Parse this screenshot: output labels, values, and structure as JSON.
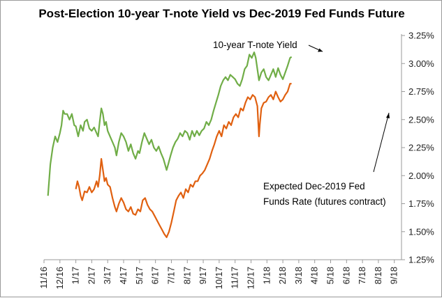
{
  "chart_data": {
    "type": "line",
    "title": "Post-Election 10-year T-note Yield vs Dec-2019 Fed Funds Future",
    "xlabel": "",
    "ylabel": "",
    "x_ticks": [
      "11/16",
      "12/16",
      "1/17",
      "2/17",
      "3/17",
      "4/17",
      "5/17",
      "6/17",
      "7/17",
      "8/17",
      "9/17",
      "10/17",
      "11/17",
      "12/17",
      "1/18",
      "2/18",
      "3/18",
      "4/18",
      "5/18",
      "6/18",
      "7/18",
      "8/18",
      "9/18"
    ],
    "y_ticks": [
      "1.25%",
      "1.50%",
      "1.75%",
      "2.00%",
      "2.25%",
      "2.50%",
      "2.75%",
      "3.00%",
      "3.25%"
    ],
    "ylim": [
      1.25,
      3.25
    ],
    "grid": false,
    "annotations": [
      {
        "text": "10-year T-note Yield",
        "points_to": "10-year T-note Yield"
      },
      {
        "text_lines": [
          "Expected Dec-2019 Fed",
          "Funds Rate (futures contract)"
        ],
        "points_to": "Expected Dec-2019 Fed Funds Rate"
      }
    ],
    "series": [
      {
        "name": "10-year T-note Yield",
        "color": "#70ad47",
        "points": [
          [
            11.25,
            1.82
          ],
          [
            11.4,
            2.1
          ],
          [
            11.55,
            2.25
          ],
          [
            11.7,
            2.35
          ],
          [
            11.85,
            2.3
          ],
          [
            12.0,
            2.38
          ],
          [
            12.1,
            2.45
          ],
          [
            12.2,
            2.58
          ],
          [
            12.3,
            2.55
          ],
          [
            12.45,
            2.55
          ],
          [
            12.6,
            2.5
          ],
          [
            12.75,
            2.55
          ],
          [
            12.9,
            2.45
          ],
          [
            13.0,
            2.44
          ],
          [
            13.15,
            2.35
          ],
          [
            13.3,
            2.45
          ],
          [
            13.45,
            2.4
          ],
          [
            13.55,
            2.48
          ],
          [
            13.7,
            2.5
          ],
          [
            13.85,
            2.42
          ],
          [
            14.0,
            2.4
          ],
          [
            14.15,
            2.43
          ],
          [
            14.3,
            2.38
          ],
          [
            14.4,
            2.35
          ],
          [
            14.5,
            2.48
          ],
          [
            14.6,
            2.6
          ],
          [
            14.7,
            2.55
          ],
          [
            14.8,
            2.45
          ],
          [
            14.9,
            2.48
          ],
          [
            15.0,
            2.4
          ],
          [
            15.15,
            2.35
          ],
          [
            15.3,
            2.3
          ],
          [
            15.45,
            2.25
          ],
          [
            15.55,
            2.18
          ],
          [
            15.7,
            2.3
          ],
          [
            15.85,
            2.38
          ],
          [
            16.0,
            2.35
          ],
          [
            16.15,
            2.3
          ],
          [
            16.3,
            2.22
          ],
          [
            16.45,
            2.28
          ],
          [
            16.6,
            2.2
          ],
          [
            16.75,
            2.15
          ],
          [
            16.9,
            2.22
          ],
          [
            17.0,
            2.2
          ],
          [
            17.15,
            2.3
          ],
          [
            17.3,
            2.38
          ],
          [
            17.45,
            2.33
          ],
          [
            17.6,
            2.28
          ],
          [
            17.75,
            2.32
          ],
          [
            17.9,
            2.25
          ],
          [
            18.05,
            2.22
          ],
          [
            18.2,
            2.26
          ],
          [
            18.35,
            2.2
          ],
          [
            18.5,
            2.15
          ],
          [
            18.6,
            2.1
          ],
          [
            18.7,
            2.05
          ],
          [
            18.8,
            2.1
          ],
          [
            18.95,
            2.18
          ],
          [
            19.1,
            2.25
          ],
          [
            19.25,
            2.3
          ],
          [
            19.4,
            2.33
          ],
          [
            19.55,
            2.38
          ],
          [
            19.7,
            2.35
          ],
          [
            19.85,
            2.4
          ],
          [
            20.0,
            2.38
          ],
          [
            20.15,
            2.32
          ],
          [
            20.3,
            2.4
          ],
          [
            20.45,
            2.35
          ],
          [
            20.6,
            2.4
          ],
          [
            20.75,
            2.36
          ],
          [
            20.9,
            2.4
          ],
          [
            21.05,
            2.42
          ],
          [
            21.2,
            2.48
          ],
          [
            21.35,
            2.45
          ],
          [
            21.5,
            2.5
          ],
          [
            21.65,
            2.58
          ],
          [
            21.8,
            2.65
          ],
          [
            21.95,
            2.72
          ],
          [
            22.1,
            2.8
          ],
          [
            22.25,
            2.85
          ],
          [
            22.4,
            2.88
          ],
          [
            22.55,
            2.85
          ],
          [
            22.7,
            2.9
          ],
          [
            22.85,
            2.88
          ],
          [
            23.0,
            2.86
          ],
          [
            23.15,
            2.82
          ],
          [
            23.3,
            2.8
          ],
          [
            23.45,
            2.86
          ],
          [
            23.6,
            2.95
          ],
          [
            23.75,
            2.98
          ],
          [
            23.9,
            3.08
          ],
          [
            24.05,
            3.05
          ],
          [
            24.2,
            3.1
          ],
          [
            24.3,
            3.05
          ],
          [
            24.4,
            2.95
          ],
          [
            24.5,
            2.85
          ],
          [
            24.65,
            2.92
          ],
          [
            24.8,
            2.95
          ],
          [
            24.95,
            2.88
          ],
          [
            25.1,
            2.85
          ],
          [
            25.25,
            2.9
          ],
          [
            25.4,
            2.95
          ],
          [
            25.55,
            2.88
          ],
          [
            25.7,
            2.96
          ],
          [
            25.85,
            2.9
          ],
          [
            26.0,
            2.86
          ],
          [
            26.15,
            2.92
          ],
          [
            26.3,
            2.98
          ],
          [
            26.45,
            3.05
          ],
          [
            26.55,
            3.06
          ]
        ]
      },
      {
        "name": "Expected Dec-2019 Fed Funds Rate",
        "color": "#e06010",
        "points": [
          [
            13.0,
            1.88
          ],
          [
            13.1,
            1.95
          ],
          [
            13.2,
            1.9
          ],
          [
            13.3,
            1.82
          ],
          [
            13.4,
            1.78
          ],
          [
            13.55,
            1.86
          ],
          [
            13.7,
            1.85
          ],
          [
            13.85,
            1.9
          ],
          [
            14.0,
            1.85
          ],
          [
            14.15,
            1.88
          ],
          [
            14.3,
            1.95
          ],
          [
            14.4,
            1.9
          ],
          [
            14.5,
            2.0
          ],
          [
            14.6,
            2.15
          ],
          [
            14.7,
            2.05
          ],
          [
            14.8,
            1.95
          ],
          [
            14.9,
            1.98
          ],
          [
            15.0,
            1.92
          ],
          [
            15.15,
            1.9
          ],
          [
            15.3,
            1.8
          ],
          [
            15.45,
            1.72
          ],
          [
            15.55,
            1.68
          ],
          [
            15.7,
            1.75
          ],
          [
            15.85,
            1.8
          ],
          [
            16.0,
            1.76
          ],
          [
            16.15,
            1.7
          ],
          [
            16.3,
            1.68
          ],
          [
            16.45,
            1.72
          ],
          [
            16.6,
            1.66
          ],
          [
            16.75,
            1.65
          ],
          [
            16.9,
            1.7
          ],
          [
            17.05,
            1.68
          ],
          [
            17.2,
            1.78
          ],
          [
            17.35,
            1.8
          ],
          [
            17.5,
            1.74
          ],
          [
            17.65,
            1.7
          ],
          [
            17.8,
            1.68
          ],
          [
            17.95,
            1.64
          ],
          [
            18.1,
            1.6
          ],
          [
            18.25,
            1.56
          ],
          [
            18.4,
            1.52
          ],
          [
            18.55,
            1.48
          ],
          [
            18.7,
            1.45
          ],
          [
            18.85,
            1.5
          ],
          [
            19.0,
            1.58
          ],
          [
            19.15,
            1.68
          ],
          [
            19.3,
            1.78
          ],
          [
            19.45,
            1.82
          ],
          [
            19.6,
            1.85
          ],
          [
            19.75,
            1.8
          ],
          [
            19.9,
            1.88
          ],
          [
            20.05,
            1.85
          ],
          [
            20.2,
            1.92
          ],
          [
            20.35,
            1.9
          ],
          [
            20.5,
            1.95
          ],
          [
            20.65,
            1.95
          ],
          [
            20.8,
            2.0
          ],
          [
            20.95,
            2.02
          ],
          [
            21.1,
            2.05
          ],
          [
            21.25,
            2.1
          ],
          [
            21.4,
            2.15
          ],
          [
            21.55,
            2.22
          ],
          [
            21.7,
            2.28
          ],
          [
            21.85,
            2.35
          ],
          [
            22.0,
            2.4
          ],
          [
            22.15,
            2.35
          ],
          [
            22.3,
            2.45
          ],
          [
            22.45,
            2.42
          ],
          [
            22.6,
            2.48
          ],
          [
            22.75,
            2.45
          ],
          [
            22.9,
            2.52
          ],
          [
            23.05,
            2.55
          ],
          [
            23.2,
            2.52
          ],
          [
            23.35,
            2.6
          ],
          [
            23.5,
            2.58
          ],
          [
            23.65,
            2.65
          ],
          [
            23.8,
            2.7
          ],
          [
            23.95,
            2.68
          ],
          [
            24.1,
            2.72
          ],
          [
            24.25,
            2.7
          ],
          [
            24.4,
            2.62
          ],
          [
            24.5,
            2.35
          ],
          [
            24.55,
            2.45
          ],
          [
            24.65,
            2.6
          ],
          [
            24.8,
            2.65
          ],
          [
            24.95,
            2.66
          ],
          [
            25.1,
            2.7
          ],
          [
            25.25,
            2.72
          ],
          [
            25.4,
            2.68
          ],
          [
            25.55,
            2.75
          ],
          [
            25.7,
            2.7
          ],
          [
            25.85,
            2.66
          ],
          [
            26.0,
            2.68
          ],
          [
            26.15,
            2.72
          ],
          [
            26.3,
            2.75
          ],
          [
            26.45,
            2.82
          ],
          [
            26.55,
            2.82
          ]
        ]
      }
    ]
  }
}
